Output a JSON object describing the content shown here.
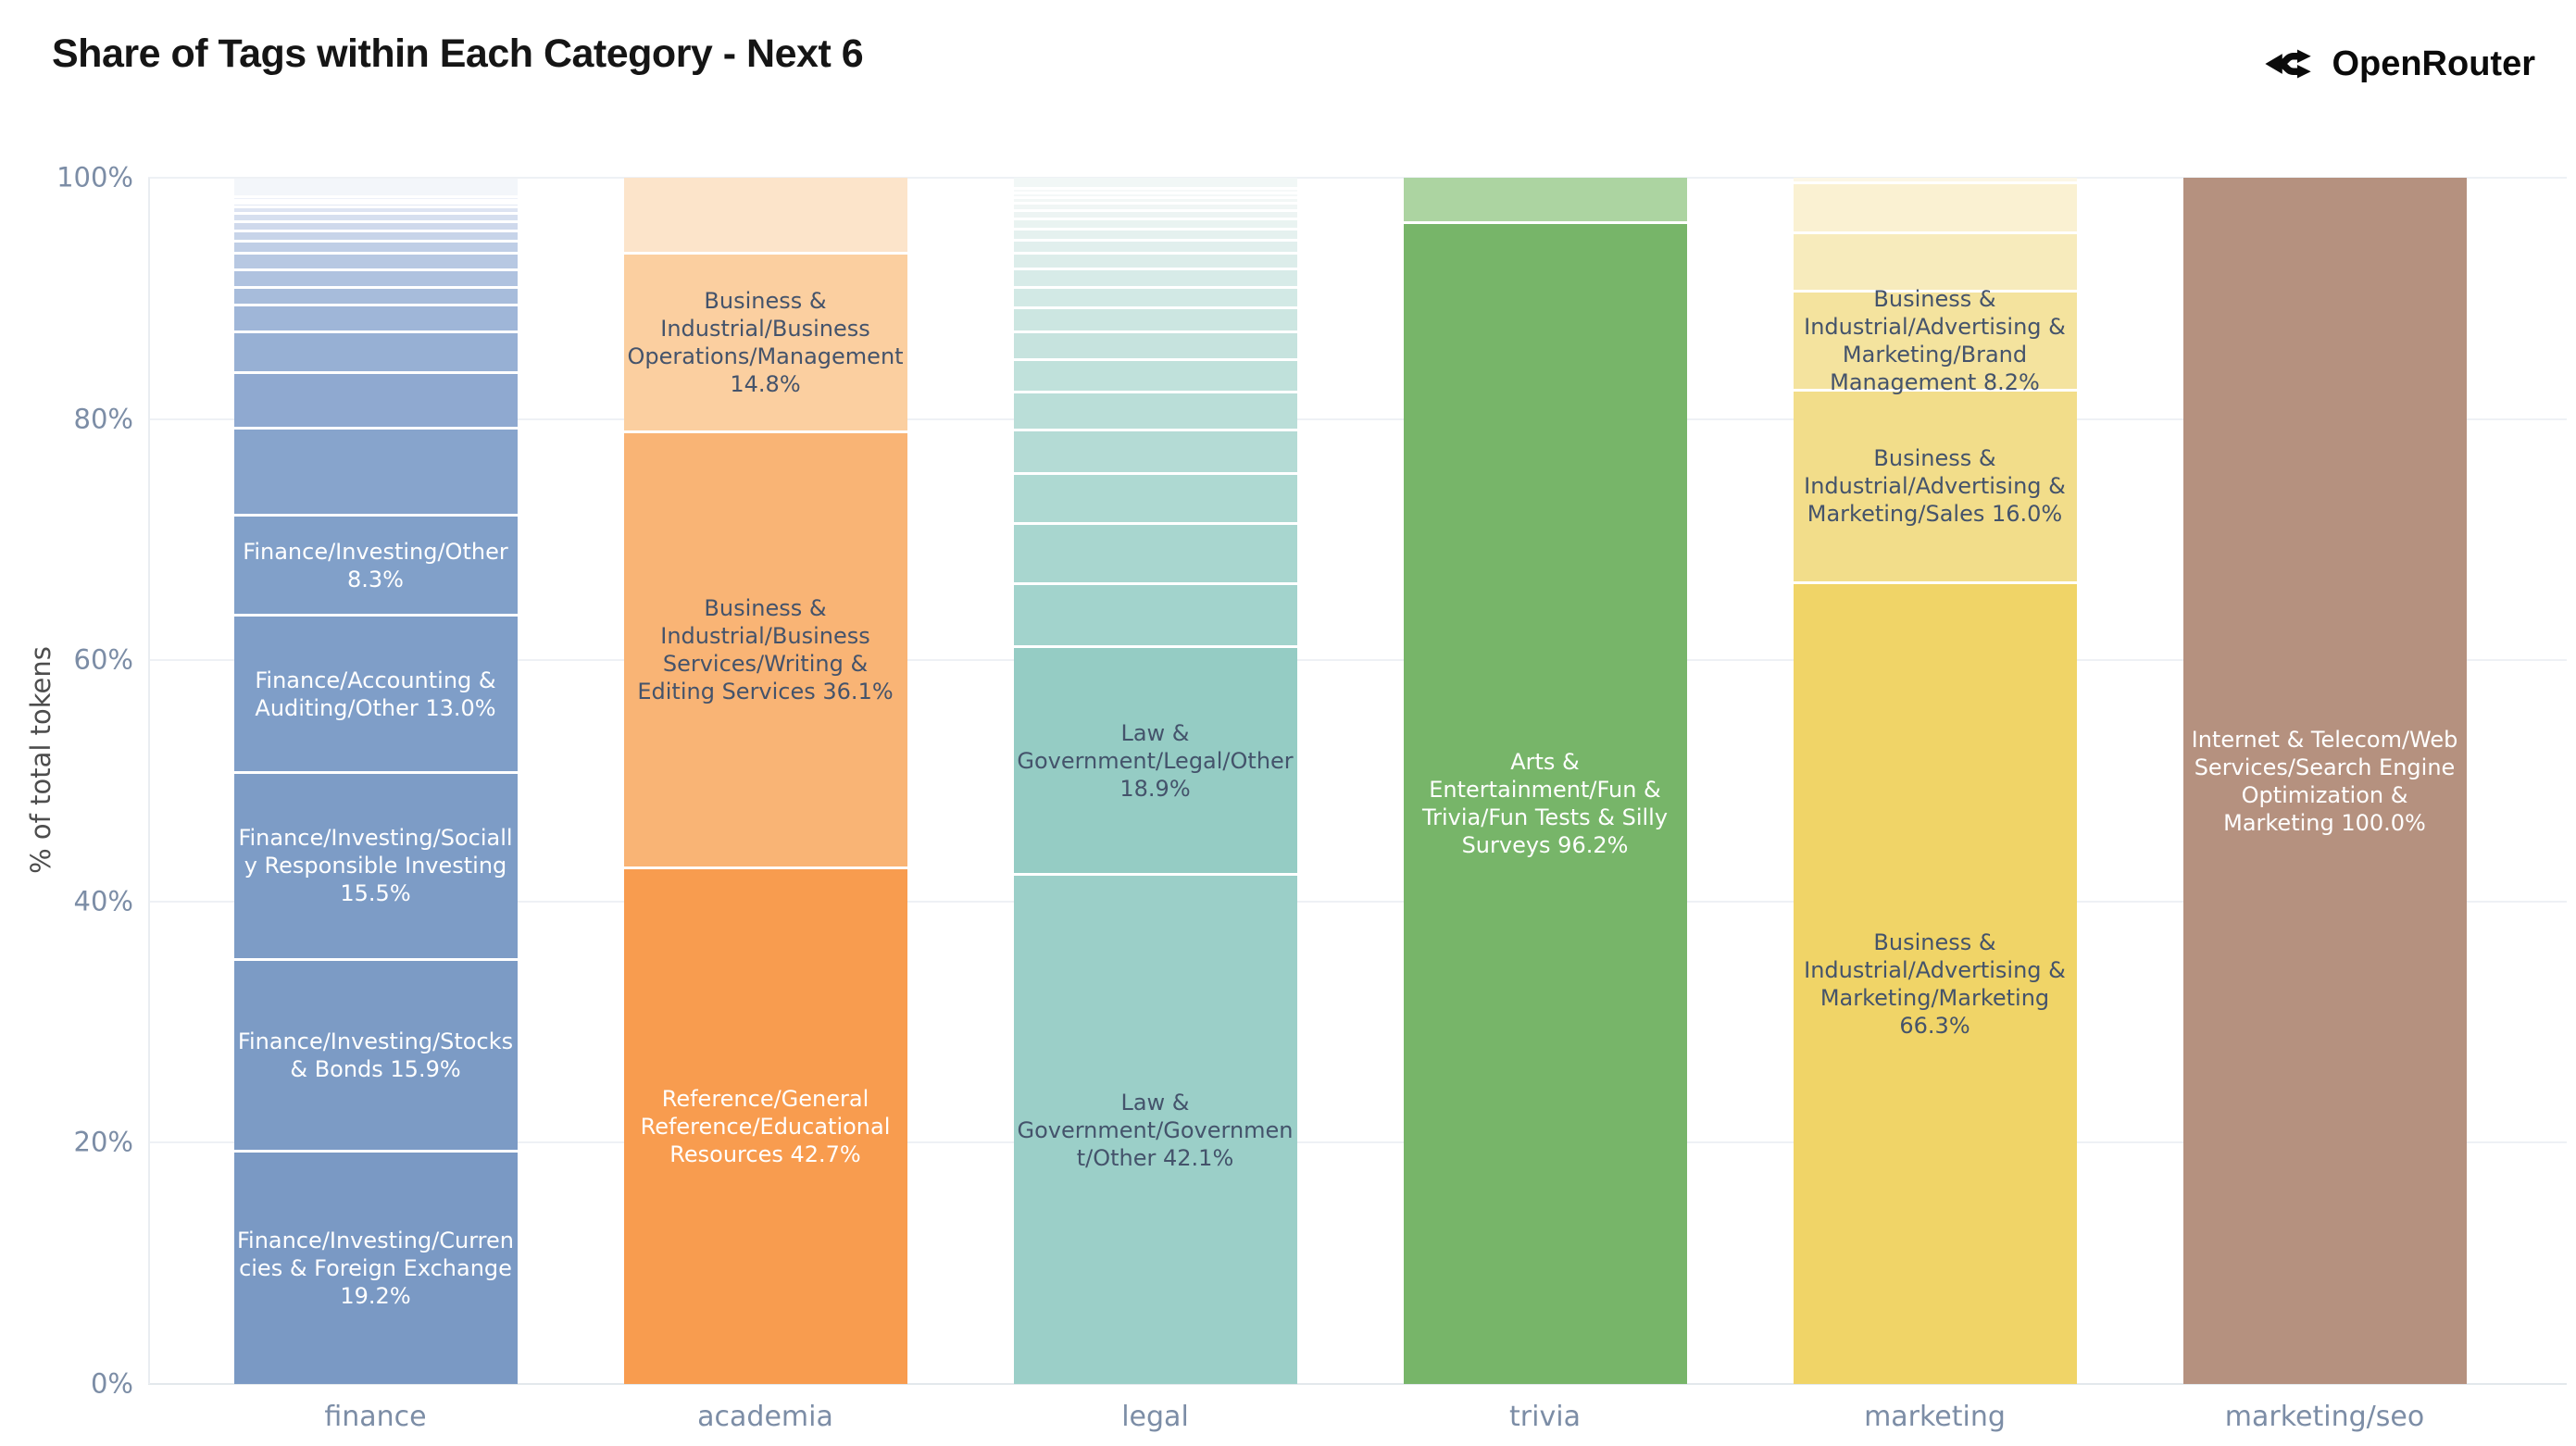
{
  "header": {
    "title": "Share of Tags within Each Category - Next 6",
    "brand": "OpenRouter"
  },
  "axes": {
    "y_title": "% of total tokens",
    "y_ticks": [
      "0%",
      "20%",
      "40%",
      "60%",
      "80%",
      "100%"
    ]
  },
  "colors": {
    "background": "#ffffff",
    "gridline": "#eef1f5",
    "axis_text": "#7c8da6",
    "dark_label": "#44536b",
    "light_label": "#ffffff",
    "finance": "#7a99c4",
    "academia": "#f89c4f",
    "legal": "#9bcfc8",
    "trivia": "#77b569",
    "marketing": "#f0d467",
    "marketing_seo": "#b5917f"
  },
  "chart_data": {
    "type": "bar",
    "subtype": "stacked-100-percent",
    "title": "Share of Tags within Each Category - Next 6",
    "xlabel": "",
    "ylabel": "% of total tokens",
    "ylim": [
      0,
      100
    ],
    "grid": true,
    "legend": "none",
    "categories": [
      "finance",
      "academia",
      "legal",
      "trivia",
      "marketing",
      "marketing/seo"
    ],
    "note": "segments listed bottom-to-top; pct of total tokens; label empty = unlabeled small tag slice",
    "bars": [
      {
        "category": "finance",
        "segments": [
          {
            "label": "Finance/Investing/Currencies & Foreign Exchange",
            "pct": 19.2,
            "color": "#7a99c4",
            "text": "#ffffff"
          },
          {
            "label": "Finance/Investing/Stocks & Bonds",
            "pct": 15.9,
            "color": "#7c9bc5",
            "text": "#ffffff"
          },
          {
            "label": "Finance/Investing/Socially Responsible Investing",
            "pct": 15.5,
            "color": "#7d9cc6",
            "text": "#ffffff"
          },
          {
            "label": "Finance/Accounting & Auditing/Other",
            "pct": 13.0,
            "color": "#7f9ec8",
            "text": "#ffffff"
          },
          {
            "label": "Finance/Investing/Other",
            "pct": 8.3,
            "color": "#81a0c9",
            "text": "#ffffff"
          },
          {
            "label": "",
            "pct": 7.2,
            "color": "#87a4cc"
          },
          {
            "label": "",
            "pct": 4.6,
            "color": "#8fa9d0"
          },
          {
            "label": "",
            "pct": 3.4,
            "color": "#97b0d4"
          },
          {
            "label": "",
            "pct": 2.2,
            "color": "#9fb6d8"
          },
          {
            "label": "",
            "pct": 1.5,
            "color": "#a7bcdb"
          },
          {
            "label": "",
            "pct": 1.45,
            "color": "#afc2df"
          },
          {
            "label": "",
            "pct": 1.35,
            "color": "#b7c8e2"
          },
          {
            "label": "",
            "pct": 1.0,
            "color": "#bfcee6"
          },
          {
            "label": "",
            "pct": 0.9,
            "color": "#c7d4e9"
          },
          {
            "label": "",
            "pct": 0.75,
            "color": "#cfd9ec"
          },
          {
            "label": "",
            "pct": 0.7,
            "color": "#d6dfef"
          },
          {
            "label": "",
            "pct": 0.5,
            "color": "#dde4f2"
          },
          {
            "label": "",
            "pct": 0.3,
            "color": "#e3e9f4"
          },
          {
            "label": "",
            "pct": 0.3,
            "color": "#e9edf6"
          },
          {
            "label": "",
            "pct": 0.3,
            "color": "#eef1f8"
          },
          {
            "label": "",
            "pct": 1.6,
            "color": "#f3f6fa"
          }
        ]
      },
      {
        "category": "academia",
        "segments": [
          {
            "label": "Reference/General Reference/Educational Resources",
            "pct": 42.7,
            "color": "#f89c4f",
            "text": "#ffffff"
          },
          {
            "label": "Business & Industrial/Business Services/Writing & Editing Services",
            "pct": 36.1,
            "color": "#f9b475",
            "text": "#44536b"
          },
          {
            "label": "Business & Industrial/Business Operations/Management",
            "pct": 14.8,
            "color": "#fbcfa0",
            "text": "#44536b"
          },
          {
            "label": "",
            "pct": 6.4,
            "color": "#fce4ca"
          }
        ]
      },
      {
        "category": "legal",
        "segments": [
          {
            "label": "Law & Government/Government/Other",
            "pct": 42.1,
            "color": "#9bcfc8",
            "text": "#44536b"
          },
          {
            "label": "Law & Government/Legal/Other",
            "pct": 18.9,
            "color": "#95ccc4",
            "text": "#44536b"
          },
          {
            "label": "",
            "pct": 5.2,
            "color": "#a2d3cc"
          },
          {
            "label": "",
            "pct": 5.0,
            "color": "#a8d6cf"
          },
          {
            "label": "",
            "pct": 4.2,
            "color": "#aed9d2"
          },
          {
            "label": "",
            "pct": 3.6,
            "color": "#b4dbd5"
          },
          {
            "label": "",
            "pct": 3.1,
            "color": "#baded8"
          },
          {
            "label": "",
            "pct": 2.7,
            "color": "#c0e1db"
          },
          {
            "label": "",
            "pct": 2.3,
            "color": "#c6e3de"
          },
          {
            "label": "",
            "pct": 2.0,
            "color": "#cce6e1"
          },
          {
            "label": "",
            "pct": 1.7,
            "color": "#d2e9e5"
          },
          {
            "label": "",
            "pct": 1.5,
            "color": "#d7ebe8"
          },
          {
            "label": "",
            "pct": 1.3,
            "color": "#dcedea"
          },
          {
            "label": "",
            "pct": 1.1,
            "color": "#e1efed"
          },
          {
            "label": "",
            "pct": 0.95,
            "color": "#e5f1ef"
          },
          {
            "label": "",
            "pct": 0.8,
            "color": "#e9f3f1"
          },
          {
            "label": "",
            "pct": 0.7,
            "color": "#edf4f3"
          },
          {
            "label": "",
            "pct": 0.6,
            "color": "#f0f6f5"
          },
          {
            "label": "",
            "pct": 0.5,
            "color": "#f2f7f6"
          },
          {
            "label": "",
            "pct": 0.4,
            "color": "#f4f8f8"
          },
          {
            "label": "",
            "pct": 0.35,
            "color": "#f6f9f9"
          },
          {
            "label": "",
            "pct": 1.0,
            "color": "#f1f7f6"
          }
        ]
      },
      {
        "category": "trivia",
        "segments": [
          {
            "label": "Arts & Entertainment/Fun & Trivia/Fun Tests & Silly Surveys",
            "pct": 96.2,
            "color": "#77b569",
            "text": "#ffffff"
          },
          {
            "label": "",
            "pct": 3.8,
            "color": "#acd4a1"
          }
        ]
      },
      {
        "category": "marketing",
        "segments": [
          {
            "label": "Business & Industrial/Advertising & Marketing/Marketing",
            "pct": 66.3,
            "color": "#f0d467",
            "text": "#44536b"
          },
          {
            "label": "Business & Industrial/Advertising & Marketing/Sales",
            "pct": 16.0,
            "color": "#f2dd8a",
            "text": "#44536b"
          },
          {
            "label": "Business & Industrial/Advertising & Marketing/Brand Management",
            "pct": 8.2,
            "color": "#f4e39e",
            "text": "#44536b"
          },
          {
            "label": "",
            "pct": 4.8,
            "color": "#f7ebbc"
          },
          {
            "label": "",
            "pct": 4.2,
            "color": "#faf1d2"
          },
          {
            "label": "",
            "pct": 0.5,
            "color": "#fcf7e6"
          }
        ]
      },
      {
        "category": "marketing/seo",
        "segments": [
          {
            "label": "Internet & Telecom/Web Services/Search Engine Optimization & Marketing",
            "pct": 100.0,
            "color": "#b5917f",
            "text": "#ffffff"
          }
        ]
      }
    ]
  }
}
